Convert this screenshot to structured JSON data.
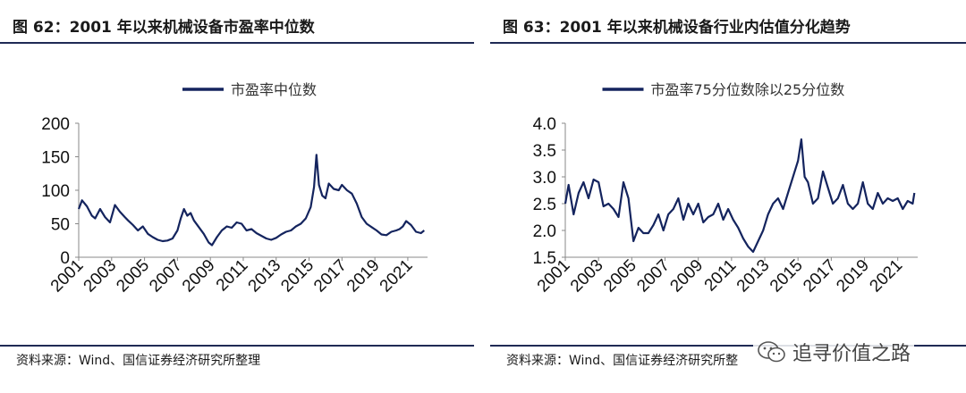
{
  "panels": [
    {
      "title": "图 62：2001 年以来机械设备市盈率中位数",
      "source": "资料来源：Wind、国信证券经济研究所整理"
    },
    {
      "title": "图 63：2001 年以来机械设备行业内估值分化趋势",
      "source": "资料来源：Wind、国信证券经济研究所整"
    }
  ],
  "watermark": {
    "text": "追寻价值之路",
    "icon": "wechat-icon"
  },
  "colors": {
    "line": "#14245e",
    "rule": "#1f2a55",
    "axis": "#888888"
  },
  "chart_data": [
    {
      "type": "line",
      "legend": "市盈率中位数",
      "legend_position": "top-center",
      "grid": false,
      "xlim": [
        2001,
        2022.2
      ],
      "ylim": [
        0,
        200
      ],
      "yticks": [
        0,
        50,
        100,
        150,
        200
      ],
      "ytick_labels": [
        "0",
        "50",
        "100",
        "150",
        "200"
      ],
      "xticks": [
        2001,
        2003,
        2005,
        2007,
        2009,
        2011,
        2013,
        2015,
        2017,
        2019,
        2021
      ],
      "xtick_labels": [
        "2001",
        "2003",
        "2005",
        "2007",
        "2009",
        "2011",
        "2013",
        "2015",
        "2017",
        "2019",
        "2021"
      ],
      "series": [
        {
          "name": "市盈率中位数",
          "x": [
            2001.0,
            2001.2,
            2001.5,
            2001.8,
            2002.0,
            2002.3,
            2002.6,
            2002.9,
            2003.2,
            2003.5,
            2003.8,
            2004.0,
            2004.3,
            2004.6,
            2004.9,
            2005.2,
            2005.5,
            2005.8,
            2006.1,
            2006.4,
            2006.7,
            2007.0,
            2007.2,
            2007.4,
            2007.6,
            2007.8,
            2008.0,
            2008.3,
            2008.6,
            2008.9,
            2009.1,
            2009.4,
            2009.7,
            2010.0,
            2010.3,
            2010.6,
            2010.9,
            2011.2,
            2011.5,
            2011.8,
            2012.1,
            2012.4,
            2012.7,
            2013.0,
            2013.3,
            2013.6,
            2013.9,
            2014.2,
            2014.5,
            2014.8,
            2015.1,
            2015.3,
            2015.45,
            2015.6,
            2015.8,
            2016.0,
            2016.2,
            2016.5,
            2016.8,
            2017.0,
            2017.3,
            2017.6,
            2017.9,
            2018.2,
            2018.5,
            2018.8,
            2019.1,
            2019.4,
            2019.7,
            2020.0,
            2020.3,
            2020.5,
            2020.7,
            2020.9,
            2021.2,
            2021.5,
            2021.8,
            2022.0
          ],
          "y": [
            72,
            85,
            76,
            62,
            58,
            72,
            60,
            52,
            78,
            68,
            60,
            55,
            48,
            40,
            46,
            35,
            30,
            26,
            24,
            25,
            28,
            40,
            58,
            72,
            62,
            66,
            55,
            45,
            35,
            22,
            18,
            30,
            40,
            46,
            44,
            52,
            50,
            40,
            42,
            36,
            32,
            28,
            26,
            29,
            34,
            38,
            40,
            46,
            50,
            58,
            75,
            105,
            153,
            108,
            92,
            88,
            110,
            102,
            100,
            108,
            100,
            95,
            80,
            60,
            50,
            45,
            40,
            34,
            33,
            38,
            40,
            42,
            46,
            54,
            48,
            38,
            36,
            40
          ]
        }
      ]
    },
    {
      "type": "line",
      "legend": "市盈率75分位数除以25分位数",
      "legend_position": "top-center",
      "grid": false,
      "xlim": [
        2001,
        2022.2
      ],
      "ylim": [
        1.5,
        4.0
      ],
      "yticks": [
        1.5,
        2.0,
        2.5,
        3.0,
        3.5,
        4.0
      ],
      "ytick_labels": [
        "1.5",
        "2.0",
        "2.5",
        "3.0",
        "3.5",
        "4.0"
      ],
      "xticks": [
        2001,
        2003,
        2005,
        2007,
        2009,
        2011,
        2013,
        2015,
        2017,
        2019,
        2021
      ],
      "xtick_labels": [
        "2001",
        "2003",
        "2005",
        "2007",
        "2009",
        "2011",
        "2013",
        "2015",
        "2017",
        "2019",
        "2021"
      ],
      "series": [
        {
          "name": "市盈率75分位数除以25分位数",
          "x": [
            2001.0,
            2001.2,
            2001.5,
            2001.8,
            2002.1,
            2002.4,
            2002.7,
            2003.0,
            2003.3,
            2003.6,
            2003.9,
            2004.2,
            2004.5,
            2004.8,
            2005.1,
            2005.4,
            2005.7,
            2006.0,
            2006.3,
            2006.6,
            2006.9,
            2007.2,
            2007.5,
            2007.8,
            2008.1,
            2008.4,
            2008.7,
            2009.0,
            2009.3,
            2009.6,
            2009.9,
            2010.2,
            2010.5,
            2010.8,
            2011.1,
            2011.4,
            2011.7,
            2012.0,
            2012.3,
            2012.6,
            2012.9,
            2013.2,
            2013.5,
            2013.8,
            2014.1,
            2014.4,
            2014.7,
            2015.0,
            2015.2,
            2015.4,
            2015.6,
            2015.9,
            2016.2,
            2016.5,
            2016.8,
            2017.1,
            2017.4,
            2017.7,
            2018.0,
            2018.3,
            2018.6,
            2018.9,
            2019.2,
            2019.5,
            2019.8,
            2020.1,
            2020.4,
            2020.7,
            2021.0,
            2021.3,
            2021.6,
            2021.9,
            2022.0
          ],
          "y": [
            2.5,
            2.85,
            2.3,
            2.7,
            2.9,
            2.6,
            2.95,
            2.9,
            2.45,
            2.5,
            2.4,
            2.25,
            2.9,
            2.6,
            1.8,
            2.05,
            1.95,
            1.95,
            2.1,
            2.3,
            2.0,
            2.3,
            2.4,
            2.6,
            2.2,
            2.5,
            2.3,
            2.5,
            2.15,
            2.25,
            2.3,
            2.5,
            2.2,
            2.4,
            2.2,
            2.05,
            1.85,
            1.7,
            1.6,
            1.8,
            2.0,
            2.3,
            2.5,
            2.6,
            2.4,
            2.7,
            3.0,
            3.3,
            3.7,
            3.0,
            2.9,
            2.5,
            2.6,
            3.1,
            2.8,
            2.5,
            2.6,
            2.85,
            2.5,
            2.4,
            2.5,
            2.9,
            2.5,
            2.4,
            2.7,
            2.5,
            2.6,
            2.55,
            2.6,
            2.4,
            2.55,
            2.5,
            2.7
          ]
        }
      ]
    }
  ]
}
